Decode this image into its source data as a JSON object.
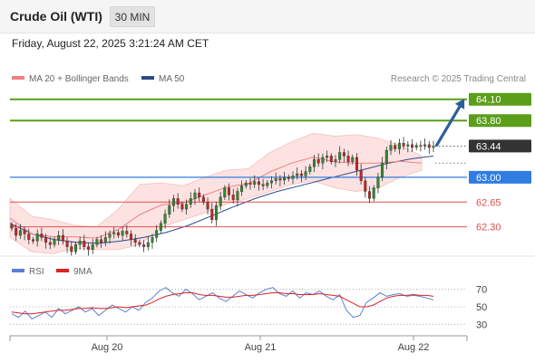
{
  "header": {
    "title": "Crude Oil (WTI)",
    "timeframe": "30 MIN"
  },
  "timestamp": "Friday, August 22, 2025 3:21:24 AM CET",
  "colors": {
    "resistance": "#5a9e1a",
    "support_current": "#2f7de1",
    "support": "#e05050",
    "last_price_bg": "#333333",
    "arrow": "#2b5e9e",
    "bollinger_fill": "#fde2e2",
    "ma20": "#f08080",
    "ma50": "#2c4a8a",
    "rsi": "#5b7fd6",
    "rsi_ma": "#dd2222",
    "candle_up": "#2e8b2e",
    "candle_down": "#cc2222"
  },
  "chart_data": [
    {
      "type": "candlestick",
      "title": "Crude Oil (WTI)",
      "timeframe": "30 MIN",
      "legend": [
        {
          "label": "MA 20 + Bollinger Bands",
          "color": "#f08080"
        },
        {
          "label": "MA 50",
          "color": "#2c4a8a"
        }
      ],
      "watermark": "Research © 2025 Trading Central",
      "x_ticks": [
        "Aug 20",
        "Aug 21",
        "Aug 22"
      ],
      "levels": [
        {
          "value": 64.1,
          "label": "64.10",
          "kind": "resistance"
        },
        {
          "value": 63.8,
          "label": "63.80",
          "kind": "resistance"
        },
        {
          "value": 63.44,
          "label": "63.44",
          "kind": "last"
        },
        {
          "value": 63.0,
          "label": "63.00",
          "kind": "pivot"
        },
        {
          "value": 62.65,
          "label": "62.65",
          "kind": "support"
        },
        {
          "value": 62.3,
          "label": "62.30",
          "kind": "support"
        }
      ],
      "close_series": [
        62.28,
        62.18,
        62.25,
        62.2,
        62.12,
        62.1,
        62.2,
        62.15,
        62.08,
        62.05,
        62.12,
        62.18,
        62.1,
        62.02,
        61.95,
        62.05,
        62.1,
        62.02,
        61.98,
        62.05,
        62.12,
        62.08,
        62.15,
        62.2,
        62.22,
        62.18,
        62.24,
        62.2,
        62.12,
        62.08,
        62.05,
        62.02,
        62.08,
        62.15,
        62.25,
        62.35,
        62.48,
        62.6,
        62.7,
        62.62,
        62.55,
        62.62,
        62.7,
        62.78,
        62.72,
        62.65,
        62.55,
        62.4,
        62.6,
        62.72,
        62.85,
        62.75,
        62.68,
        62.8,
        62.88,
        62.92,
        62.9,
        62.94,
        62.9,
        62.88,
        62.92,
        62.95,
        62.98,
        62.96,
        63.0,
        62.98,
        63.02,
        63.05,
        63.02,
        63.08,
        63.15,
        63.25,
        63.2,
        63.28,
        63.3,
        63.22,
        63.25,
        63.35,
        63.3,
        63.22,
        63.28,
        63.1,
        62.95,
        62.8,
        62.7,
        62.85,
        63.0,
        63.2,
        63.38,
        63.45,
        63.4,
        63.48,
        63.44,
        63.46,
        63.42,
        63.45,
        63.44,
        63.46,
        63.42,
        63.44
      ],
      "ma50_series": [
        62.35,
        62.2,
        62.12,
        62.08,
        62.07,
        62.1,
        62.15,
        62.22,
        62.32,
        62.45,
        62.58,
        62.7,
        62.8,
        62.88,
        62.96,
        63.04,
        63.12,
        63.2,
        63.26,
        63.3
      ],
      "bollinger_upper": [
        62.7,
        62.45,
        62.4,
        62.32,
        62.3,
        62.55,
        62.9,
        62.92,
        62.88,
        63.0,
        63.1,
        63.12,
        63.35,
        63.5,
        63.62,
        63.58,
        63.6,
        63.55,
        63.45,
        63.3
      ],
      "bollinger_lower": [
        62.15,
        61.95,
        61.92,
        62.0,
        61.98,
        61.98,
        62.05,
        62.3,
        62.4,
        62.5,
        62.62,
        62.7,
        62.8,
        62.9,
        62.95,
        62.85,
        62.8,
        62.85,
        63.0,
        63.1
      ],
      "ylim": [
        61.9,
        64.25
      ]
    },
    {
      "type": "line",
      "title": "",
      "legend": [
        {
          "label": "RSI",
          "color": "#5b7fd6"
        },
        {
          "label": "9MA",
          "color": "#dd2222"
        }
      ],
      "y_ticks": [
        70,
        50,
        30
      ],
      "ylim": [
        20,
        80
      ],
      "series": [
        {
          "name": "RSI",
          "values": [
            42,
            38,
            45,
            36,
            40,
            44,
            38,
            48,
            42,
            46,
            50,
            44,
            48,
            40,
            46,
            52,
            48,
            44,
            50,
            46,
            55,
            60,
            68,
            72,
            66,
            62,
            70,
            65,
            58,
            62,
            66,
            60,
            56,
            62,
            68,
            64,
            60,
            66,
            70,
            72,
            65,
            62,
            68,
            60,
            66,
            64,
            68,
            62,
            58,
            64,
            46,
            38,
            40,
            55,
            60,
            66,
            62,
            64,
            65,
            62,
            63,
            62,
            60,
            58
          ]
        },
        {
          "name": "9MA",
          "values": [
            44,
            43,
            42,
            42,
            43,
            44,
            45,
            46,
            46,
            47,
            48,
            48,
            49,
            48,
            48,
            49,
            50,
            49,
            50,
            51,
            52,
            55,
            59,
            62,
            64,
            65,
            66,
            66,
            64,
            63,
            63,
            62,
            61,
            61,
            62,
            63,
            63,
            64,
            65,
            66,
            66,
            65,
            65,
            64,
            64,
            64,
            65,
            64,
            63,
            62,
            58,
            54,
            50,
            50,
            52,
            56,
            60,
            62,
            63,
            63,
            64,
            63,
            63,
            62
          ]
        }
      ]
    }
  ]
}
